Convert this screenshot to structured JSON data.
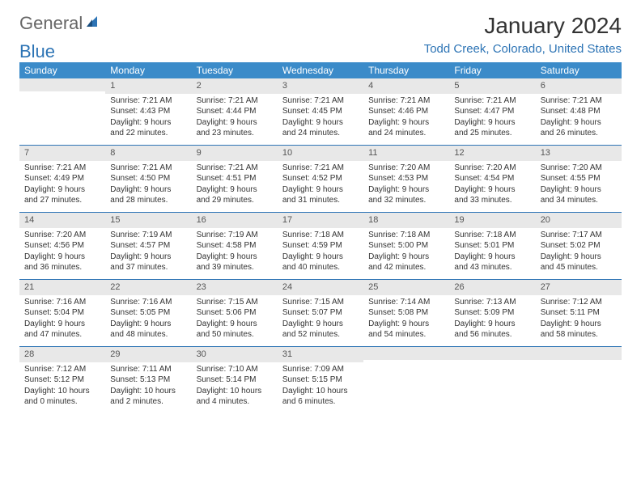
{
  "logo": {
    "text1": "General",
    "text2": "Blue"
  },
  "title": "January 2024",
  "location": "Todd Creek, Colorado, United States",
  "colors": {
    "header_bg": "#3b8bc9",
    "accent": "#2d74b5",
    "daynum_bg": "#e8e8e8",
    "text": "#333333"
  },
  "weekdays": [
    "Sunday",
    "Monday",
    "Tuesday",
    "Wednesday",
    "Thursday",
    "Friday",
    "Saturday"
  ],
  "weeks": [
    [
      {
        "n": "",
        "sunrise": "",
        "sunset": "",
        "daylight": ""
      },
      {
        "n": "1",
        "sunrise": "Sunrise: 7:21 AM",
        "sunset": "Sunset: 4:43 PM",
        "daylight": "Daylight: 9 hours and 22 minutes."
      },
      {
        "n": "2",
        "sunrise": "Sunrise: 7:21 AM",
        "sunset": "Sunset: 4:44 PM",
        "daylight": "Daylight: 9 hours and 23 minutes."
      },
      {
        "n": "3",
        "sunrise": "Sunrise: 7:21 AM",
        "sunset": "Sunset: 4:45 PM",
        "daylight": "Daylight: 9 hours and 24 minutes."
      },
      {
        "n": "4",
        "sunrise": "Sunrise: 7:21 AM",
        "sunset": "Sunset: 4:46 PM",
        "daylight": "Daylight: 9 hours and 24 minutes."
      },
      {
        "n": "5",
        "sunrise": "Sunrise: 7:21 AM",
        "sunset": "Sunset: 4:47 PM",
        "daylight": "Daylight: 9 hours and 25 minutes."
      },
      {
        "n": "6",
        "sunrise": "Sunrise: 7:21 AM",
        "sunset": "Sunset: 4:48 PM",
        "daylight": "Daylight: 9 hours and 26 minutes."
      }
    ],
    [
      {
        "n": "7",
        "sunrise": "Sunrise: 7:21 AM",
        "sunset": "Sunset: 4:49 PM",
        "daylight": "Daylight: 9 hours and 27 minutes."
      },
      {
        "n": "8",
        "sunrise": "Sunrise: 7:21 AM",
        "sunset": "Sunset: 4:50 PM",
        "daylight": "Daylight: 9 hours and 28 minutes."
      },
      {
        "n": "9",
        "sunrise": "Sunrise: 7:21 AM",
        "sunset": "Sunset: 4:51 PM",
        "daylight": "Daylight: 9 hours and 29 minutes."
      },
      {
        "n": "10",
        "sunrise": "Sunrise: 7:21 AM",
        "sunset": "Sunset: 4:52 PM",
        "daylight": "Daylight: 9 hours and 31 minutes."
      },
      {
        "n": "11",
        "sunrise": "Sunrise: 7:20 AM",
        "sunset": "Sunset: 4:53 PM",
        "daylight": "Daylight: 9 hours and 32 minutes."
      },
      {
        "n": "12",
        "sunrise": "Sunrise: 7:20 AM",
        "sunset": "Sunset: 4:54 PM",
        "daylight": "Daylight: 9 hours and 33 minutes."
      },
      {
        "n": "13",
        "sunrise": "Sunrise: 7:20 AM",
        "sunset": "Sunset: 4:55 PM",
        "daylight": "Daylight: 9 hours and 34 minutes."
      }
    ],
    [
      {
        "n": "14",
        "sunrise": "Sunrise: 7:20 AM",
        "sunset": "Sunset: 4:56 PM",
        "daylight": "Daylight: 9 hours and 36 minutes."
      },
      {
        "n": "15",
        "sunrise": "Sunrise: 7:19 AM",
        "sunset": "Sunset: 4:57 PM",
        "daylight": "Daylight: 9 hours and 37 minutes."
      },
      {
        "n": "16",
        "sunrise": "Sunrise: 7:19 AM",
        "sunset": "Sunset: 4:58 PM",
        "daylight": "Daylight: 9 hours and 39 minutes."
      },
      {
        "n": "17",
        "sunrise": "Sunrise: 7:18 AM",
        "sunset": "Sunset: 4:59 PM",
        "daylight": "Daylight: 9 hours and 40 minutes."
      },
      {
        "n": "18",
        "sunrise": "Sunrise: 7:18 AM",
        "sunset": "Sunset: 5:00 PM",
        "daylight": "Daylight: 9 hours and 42 minutes."
      },
      {
        "n": "19",
        "sunrise": "Sunrise: 7:18 AM",
        "sunset": "Sunset: 5:01 PM",
        "daylight": "Daylight: 9 hours and 43 minutes."
      },
      {
        "n": "20",
        "sunrise": "Sunrise: 7:17 AM",
        "sunset": "Sunset: 5:02 PM",
        "daylight": "Daylight: 9 hours and 45 minutes."
      }
    ],
    [
      {
        "n": "21",
        "sunrise": "Sunrise: 7:16 AM",
        "sunset": "Sunset: 5:04 PM",
        "daylight": "Daylight: 9 hours and 47 minutes."
      },
      {
        "n": "22",
        "sunrise": "Sunrise: 7:16 AM",
        "sunset": "Sunset: 5:05 PM",
        "daylight": "Daylight: 9 hours and 48 minutes."
      },
      {
        "n": "23",
        "sunrise": "Sunrise: 7:15 AM",
        "sunset": "Sunset: 5:06 PM",
        "daylight": "Daylight: 9 hours and 50 minutes."
      },
      {
        "n": "24",
        "sunrise": "Sunrise: 7:15 AM",
        "sunset": "Sunset: 5:07 PM",
        "daylight": "Daylight: 9 hours and 52 minutes."
      },
      {
        "n": "25",
        "sunrise": "Sunrise: 7:14 AM",
        "sunset": "Sunset: 5:08 PM",
        "daylight": "Daylight: 9 hours and 54 minutes."
      },
      {
        "n": "26",
        "sunrise": "Sunrise: 7:13 AM",
        "sunset": "Sunset: 5:09 PM",
        "daylight": "Daylight: 9 hours and 56 minutes."
      },
      {
        "n": "27",
        "sunrise": "Sunrise: 7:12 AM",
        "sunset": "Sunset: 5:11 PM",
        "daylight": "Daylight: 9 hours and 58 minutes."
      }
    ],
    [
      {
        "n": "28",
        "sunrise": "Sunrise: 7:12 AM",
        "sunset": "Sunset: 5:12 PM",
        "daylight": "Daylight: 10 hours and 0 minutes."
      },
      {
        "n": "29",
        "sunrise": "Sunrise: 7:11 AM",
        "sunset": "Sunset: 5:13 PM",
        "daylight": "Daylight: 10 hours and 2 minutes."
      },
      {
        "n": "30",
        "sunrise": "Sunrise: 7:10 AM",
        "sunset": "Sunset: 5:14 PM",
        "daylight": "Daylight: 10 hours and 4 minutes."
      },
      {
        "n": "31",
        "sunrise": "Sunrise: 7:09 AM",
        "sunset": "Sunset: 5:15 PM",
        "daylight": "Daylight: 10 hours and 6 minutes."
      },
      {
        "n": "",
        "sunrise": "",
        "sunset": "",
        "daylight": ""
      },
      {
        "n": "",
        "sunrise": "",
        "sunset": "",
        "daylight": ""
      },
      {
        "n": "",
        "sunrise": "",
        "sunset": "",
        "daylight": ""
      }
    ]
  ]
}
